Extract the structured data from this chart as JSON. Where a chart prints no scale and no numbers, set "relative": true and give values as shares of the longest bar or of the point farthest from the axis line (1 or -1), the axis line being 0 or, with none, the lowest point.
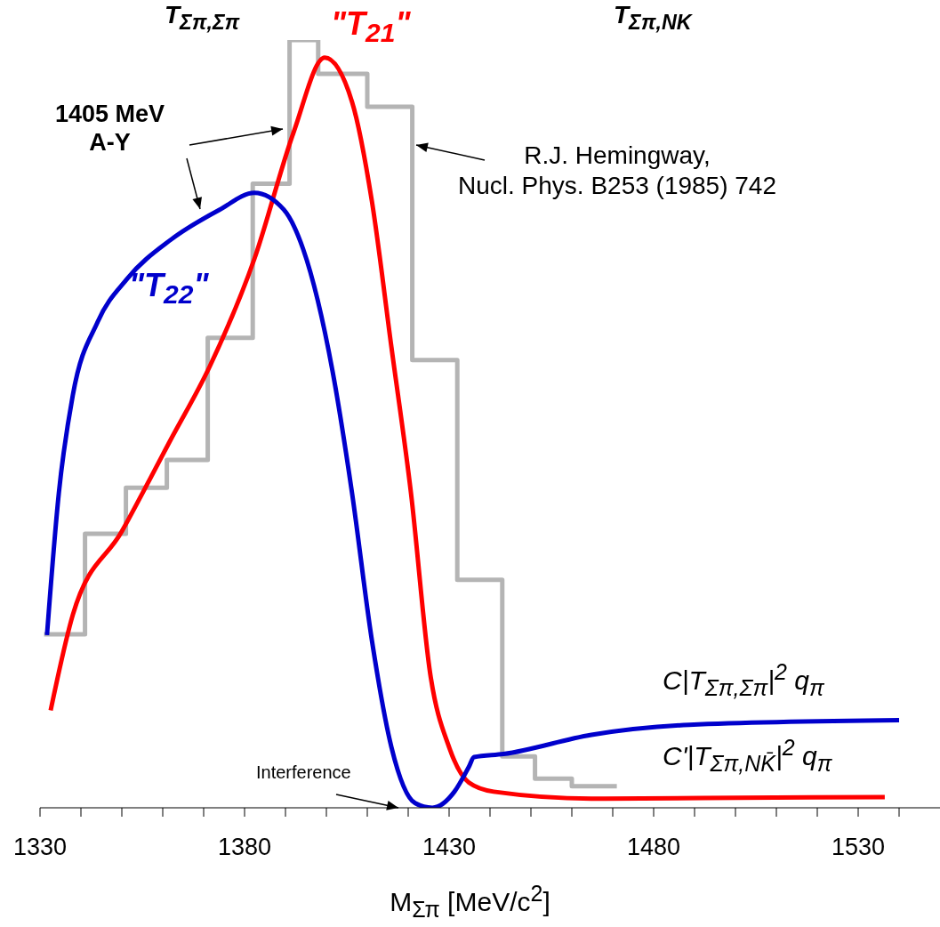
{
  "chart_data": {
    "type": "line",
    "relative": true,
    "xlabel": "M$_{Σπ}$  [MeV/c$^{2}$]",
    "xlim": [
      1330,
      1550
    ],
    "xticks": [
      1330,
      {
        "value": 1340,
        "label": null
      },
      {
        "value": 1350,
        "label": null
      },
      {
        "value": 1360,
        "label": null
      },
      {
        "value": 1370,
        "label": null
      },
      1380,
      {
        "value": 1390,
        "label": null
      },
      {
        "value": 1400,
        "label": null
      },
      {
        "value": 1410,
        "label": null
      },
      {
        "value": 1420,
        "label": null
      },
      1430,
      {
        "value": 1440,
        "label": null
      },
      {
        "value": 1450,
        "label": null
      },
      {
        "value": 1460,
        "label": null
      },
      {
        "value": 1470,
        "label": null
      },
      1480,
      {
        "value": 1490,
        "label": null
      },
      {
        "value": 1500,
        "label": null
      },
      {
        "value": 1510,
        "label": null
      },
      {
        "value": 1520,
        "label": null
      },
      1530,
      {
        "value": 1540,
        "label": null
      }
    ],
    "series": [
      {
        "type": "step",
        "color": "#b4b4b4",
        "x": [
          1331,
          1341,
          1351,
          1361,
          1371,
          1382,
          1391,
          1398,
          1410,
          1421,
          1432,
          1443,
          1451,
          1460,
          1471
        ],
        "values": [
          0.226,
          0.357,
          0.417,
          0.453,
          0.612,
          0.813,
          1.0,
          0.956,
          0.913,
          0.583,
          0.297,
          0.067,
          0.038,
          0.028,
          0.028
        ]
      },
      {
        "name": "\"T$_{21}$\"",
        "color": "#ff0000",
        "x": [
          1332.6,
          1338,
          1350,
          1362,
          1371.5,
          1382.4,
          1392,
          1399.6,
          1406.3,
          1411.1,
          1415.9,
          1420.7,
          1425.4,
          1430,
          1434.8,
          1440.9,
          1464.8,
          1500.7,
          1536.5
        ],
        "values": [
          0.127,
          0.251,
          0.36,
          0.48,
          0.575,
          0.715,
          0.88,
          0.977,
          0.919,
          0.791,
          0.6,
          0.409,
          0.174,
          0.079,
          0.033,
          0.021,
          0.012,
          0.013,
          0.014
        ]
      },
      {
        "name": "\"T$_{22}$\"",
        "color": "#0000cc",
        "x": [
          1331.7,
          1334.6,
          1338,
          1344.1,
          1351.3,
          1362,
          1373.9,
          1382.4,
          1389.6,
          1394.3,
          1401.5,
          1406.3,
          1411.1,
          1415.9,
          1421.7,
          1425.9,
          1431.3,
          1434.8,
          1436.1,
          1443.3,
          1464.8,
          1488.7,
          1540
        ],
        "values": [
          0.225,
          0.41,
          0.537,
          0.633,
          0.689,
          0.74,
          0.779,
          0.801,
          0.779,
          0.728,
          0.569,
          0.409,
          0.219,
          0.079,
          0.006,
          0,
          0.021,
          0.053,
          0.066,
          0.07,
          0.095,
          0.108,
          0.114
        ]
      }
    ],
    "annotations": [
      "T$_{Σπ,Σπ}$",
      "T$_{Σπ,NK}$",
      "1405 MeV\nA-Y",
      "R.J. Hemingway,\nNucl. Phys. B253 (1985) 742",
      "Interference",
      "C|T$_{Σπ,Σπ}$|$^{2}$ q$_{π}$",
      "C'|T$_{Σπ,NK̄}$|$^{2}$ q$_{π}$"
    ]
  }
}
